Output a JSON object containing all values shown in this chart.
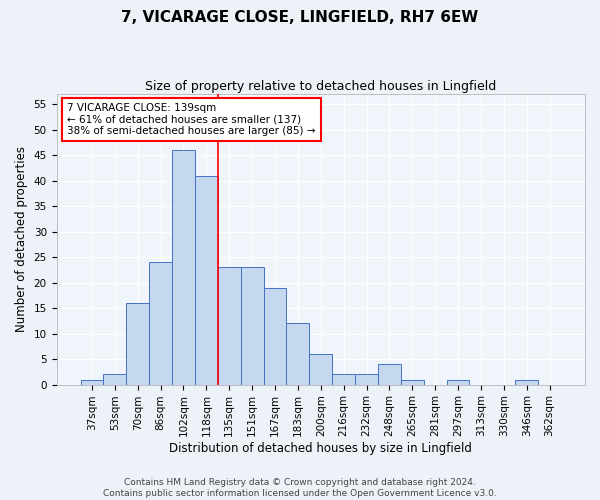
{
  "title_line1": "7, VICARAGE CLOSE, LINGFIELD, RH7 6EW",
  "title_line2": "Size of property relative to detached houses in Lingfield",
  "xlabel": "Distribution of detached houses by size in Lingfield",
  "ylabel": "Number of detached properties",
  "categories": [
    "37sqm",
    "53sqm",
    "70sqm",
    "86sqm",
    "102sqm",
    "118sqm",
    "135sqm",
    "151sqm",
    "167sqm",
    "183sqm",
    "200sqm",
    "216sqm",
    "232sqm",
    "248sqm",
    "265sqm",
    "281sqm",
    "297sqm",
    "313sqm",
    "330sqm",
    "346sqm",
    "362sqm"
  ],
  "values": [
    1,
    2,
    16,
    24,
    46,
    41,
    23,
    23,
    19,
    12,
    6,
    2,
    2,
    4,
    1,
    0,
    1,
    0,
    0,
    1,
    0
  ],
  "bar_color": "#c5d8f0",
  "bar_edge_color": "#4472c4",
  "vline_x_index": 5.5,
  "vline_color": "red",
  "annotation_text": "7 VICARAGE CLOSE: 139sqm\n← 61% of detached houses are smaller (137)\n38% of semi-detached houses are larger (85) →",
  "annotation_box_color": "white",
  "annotation_box_edge_color": "red",
  "annotation_fontsize": 7.5,
  "ylim": [
    0,
    57
  ],
  "yticks": [
    0,
    5,
    10,
    15,
    20,
    25,
    30,
    35,
    40,
    45,
    50,
    55
  ],
  "title_fontsize1": 11,
  "title_fontsize2": 9,
  "xlabel_fontsize": 8.5,
  "ylabel_fontsize": 8.5,
  "tick_fontsize": 7.5,
  "footer_line1": "Contains HM Land Registry data © Crown copyright and database right 2024.",
  "footer_line2": "Contains public sector information licensed under the Open Government Licence v3.0.",
  "footer_fontsize": 6.5,
  "bg_color": "#edf2f8",
  "plot_bg_color": "#f0f4fb",
  "grid_color": "#ffffff"
}
